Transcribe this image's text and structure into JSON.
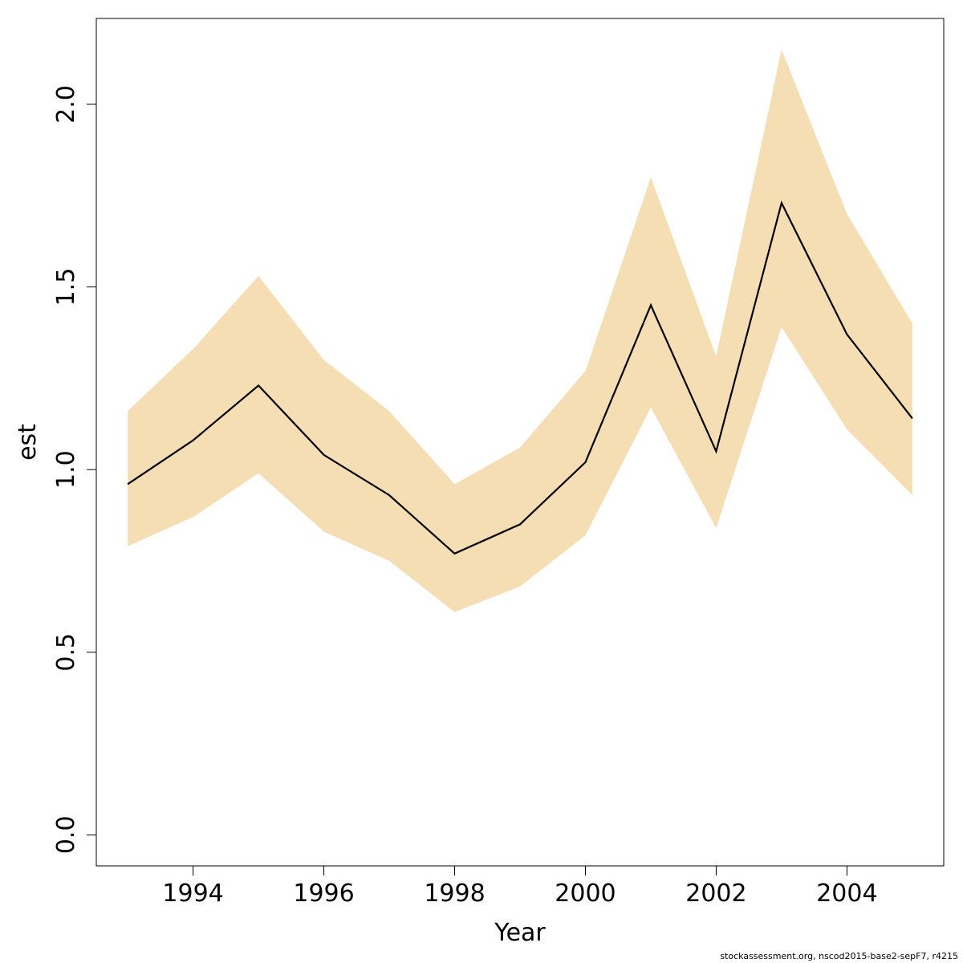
{
  "chart_data": {
    "type": "line",
    "title": "",
    "xlabel": "Year",
    "ylabel": "est",
    "xlim": [
      1992.52,
      2005.48
    ],
    "ylim": [
      -0.085,
      2.235
    ],
    "xticks": [
      1994,
      1996,
      1998,
      2000,
      2002,
      2004
    ],
    "yticks": [
      0.0,
      0.5,
      1.0,
      1.5,
      2.0
    ],
    "xtick_labels": [
      "1994",
      "1996",
      "1998",
      "2000",
      "2002",
      "2004"
    ],
    "ytick_labels": [
      "0.0",
      "0.5",
      "1.0",
      "1.5",
      "2.0"
    ],
    "x": [
      1993,
      1994,
      1995,
      1996,
      1997,
      1998,
      1999,
      2000,
      2001,
      2002,
      2003,
      2004,
      2005
    ],
    "series": [
      {
        "values": [
          0.96,
          1.08,
          1.23,
          1.04,
          0.93,
          0.77,
          0.85,
          1.02,
          1.45,
          1.05,
          1.73,
          1.37,
          1.14
        ],
        "color": "#000000"
      }
    ],
    "band": {
      "lower": [
        0.79,
        0.87,
        0.99,
        0.83,
        0.75,
        0.61,
        0.68,
        0.82,
        1.17,
        0.84,
        1.39,
        1.11,
        0.93
      ],
      "upper": [
        1.16,
        1.33,
        1.53,
        1.3,
        1.16,
        0.96,
        1.06,
        1.27,
        1.8,
        1.31,
        2.15,
        1.7,
        1.4
      ],
      "color": "#f5deb3"
    },
    "grid": false,
    "legend": "none"
  },
  "footer": {
    "text": "stockassessment.org, nscod2015-base2-sepF7, r4215"
  }
}
